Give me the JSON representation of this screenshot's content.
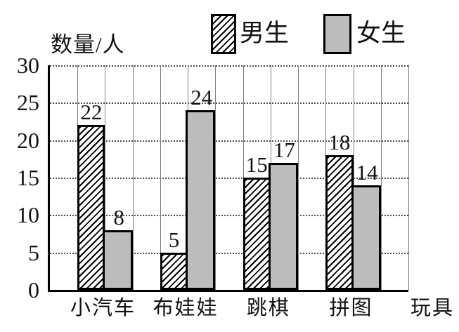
{
  "chart_data": {
    "type": "bar",
    "title": "",
    "ylabel": "数量/人",
    "x_axis_unit_label": "玩具",
    "categories": [
      "小汽车",
      "布娃娃",
      "跳棋",
      "拼图"
    ],
    "series": [
      {
        "name": "男生",
        "style": "hatched-diagonal-black-on-white",
        "values": [
          22,
          5,
          15,
          18
        ]
      },
      {
        "name": "女生",
        "style": "solid-gray",
        "values": [
          8,
          24,
          17,
          14
        ]
      }
    ],
    "yticks": [
      0,
      5,
      10,
      15,
      20,
      25,
      30
    ],
    "ylim": [
      0,
      30
    ],
    "grid": true,
    "legend_position": "top-center",
    "colors": {
      "bar_male_fill": "#ffffff",
      "bar_male_hatch": "#000000",
      "bar_female_fill": "#bcbcbc",
      "bar_border": "#000000",
      "axis": "#000000",
      "grid_horizontal": "#4c4c4c",
      "grid_vertical": "#7d7d7d",
      "text": "#111111",
      "background": "#ffffff"
    }
  }
}
